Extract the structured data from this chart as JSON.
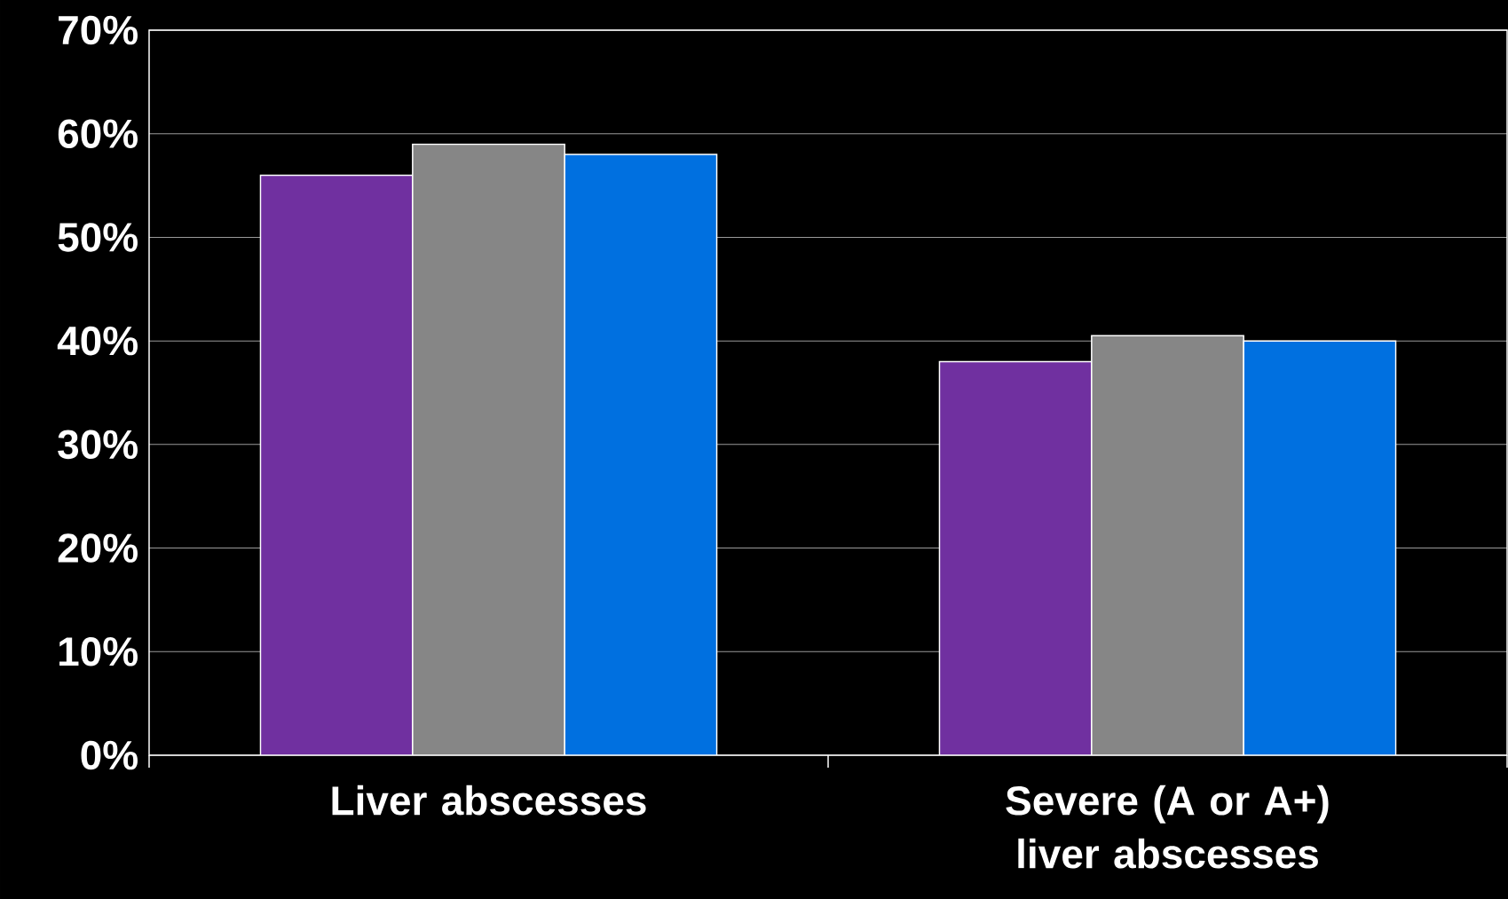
{
  "chart_data": {
    "type": "bar",
    "categories": [
      "Liver abscesses",
      "Severe (A or A+) liver abscesses"
    ],
    "series": [
      {
        "color": "#7030a0",
        "values": [
          56,
          38
        ]
      },
      {
        "color": "#868686",
        "values": [
          59,
          40.5
        ]
      },
      {
        "color": "#0070e0",
        "values": [
          58,
          40
        ]
      }
    ],
    "ylim": [
      0,
      70
    ],
    "yticks": [
      {
        "value": 0,
        "label": "0%"
      },
      {
        "value": 10,
        "label": "10%"
      },
      {
        "value": 20,
        "label": "20%"
      },
      {
        "value": 30,
        "label": "30%"
      },
      {
        "value": 40,
        "label": "40%"
      },
      {
        "value": 50,
        "label": "50%"
      },
      {
        "value": 60,
        "label": "60%"
      },
      {
        "value": 70,
        "label": "70%"
      }
    ],
    "grid": "y"
  }
}
